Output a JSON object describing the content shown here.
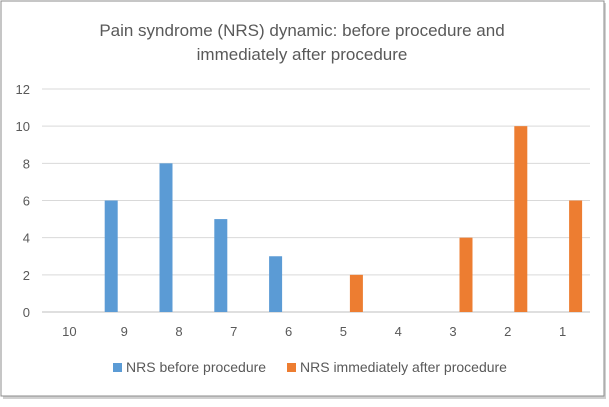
{
  "chart_data": {
    "type": "bar",
    "title_line1": "Pain syndrome (NRS) dynamic: before procedure and",
    "title_line2": "immediately after procedure",
    "categories": [
      "10",
      "9",
      "8",
      "7",
      "6",
      "5",
      "4",
      "3",
      "2",
      "1"
    ],
    "series": [
      {
        "name": "NRS before procedure",
        "color": "#5b9bd5",
        "values": [
          0,
          6,
          8,
          5,
          3,
          0,
          0,
          0,
          0,
          0
        ]
      },
      {
        "name": "NRS immediately after procedure",
        "color": "#ed7d31",
        "values": [
          0,
          0,
          0,
          0,
          0,
          2,
          0,
          4,
          10,
          6
        ]
      }
    ],
    "yticks": [
      "0",
      "2",
      "4",
      "6",
      "8",
      "10",
      "12"
    ],
    "ylim": [
      0,
      12
    ],
    "grid": true,
    "legend_position": "bottom"
  }
}
